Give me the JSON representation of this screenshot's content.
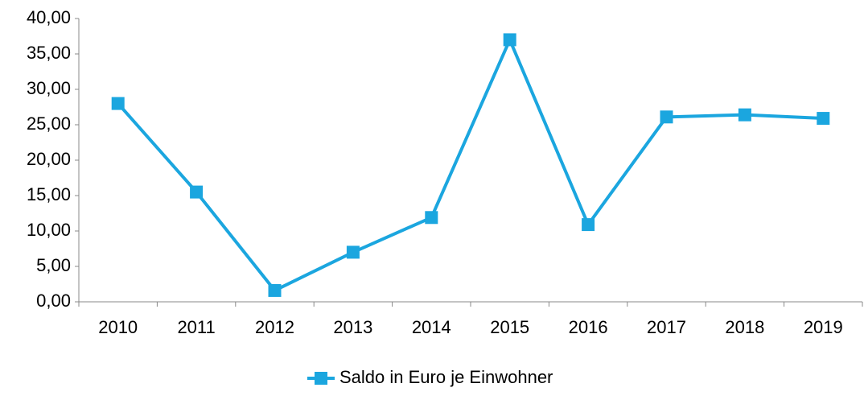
{
  "chart_data": {
    "type": "line",
    "categories": [
      "2010",
      "2011",
      "2012",
      "2013",
      "2014",
      "2015",
      "2016",
      "2017",
      "2018",
      "2019"
    ],
    "series": [
      {
        "name": "Saldo in Euro je Einwohner",
        "color": "#1ba6df",
        "values": [
          28.0,
          15.5,
          1.6,
          7.0,
          11.9,
          37.0,
          10.9,
          26.1,
          26.4,
          25.9
        ]
      }
    ],
    "ylim": [
      0,
      40
    ],
    "yticks": [
      {
        "value": 0,
        "label": "0,00"
      },
      {
        "value": 5,
        "label": "5,00"
      },
      {
        "value": 10,
        "label": "10,00"
      },
      {
        "value": 15,
        "label": "15,00"
      },
      {
        "value": 20,
        "label": "20,00"
      },
      {
        "value": 25,
        "label": "25,00"
      },
      {
        "value": 30,
        "label": "30,00"
      },
      {
        "value": 35,
        "label": "35,00"
      },
      {
        "value": 40,
        "label": "40,00"
      }
    ],
    "grid": false,
    "legend": "bottom"
  }
}
